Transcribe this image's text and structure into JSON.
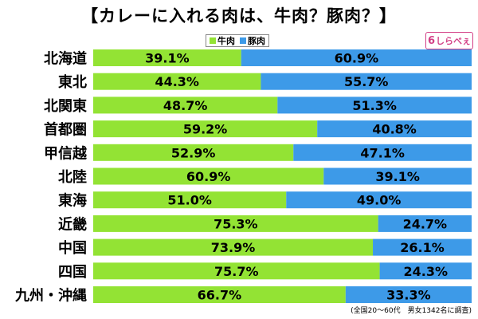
{
  "title": "【カレーに入れる肉は、牛肉？豚肉？】",
  "legend": [
    {
      "label": "牛肉",
      "color": "#93e334"
    },
    {
      "label": "豚肉",
      "color": "#3d9ae8"
    }
  ],
  "logo": {
    "text": "しらべぇ",
    "mark": "6"
  },
  "note": "(全国20～60代　男女1342名に調査)",
  "chart_data": {
    "type": "bar",
    "orientation": "horizontal",
    "stacked": true,
    "percent_suffix": "%",
    "categories": [
      "北海道",
      "東北",
      "北関東",
      "首都圏",
      "甲信越",
      "北陸",
      "東海",
      "近畿",
      "中国",
      "四国",
      "九州・沖縄"
    ],
    "series": [
      {
        "name": "牛肉",
        "color": "#93e334",
        "values": [
          39.1,
          44.3,
          48.7,
          59.2,
          52.9,
          60.9,
          51.0,
          75.3,
          73.9,
          75.7,
          66.7
        ]
      },
      {
        "name": "豚肉",
        "color": "#3d9ae8",
        "values": [
          60.9,
          55.7,
          51.3,
          40.8,
          47.1,
          39.1,
          49.0,
          24.7,
          26.1,
          24.3,
          33.3
        ]
      }
    ],
    "xlim": [
      0,
      100
    ],
    "grid": false,
    "legend_position": "top-center"
  }
}
